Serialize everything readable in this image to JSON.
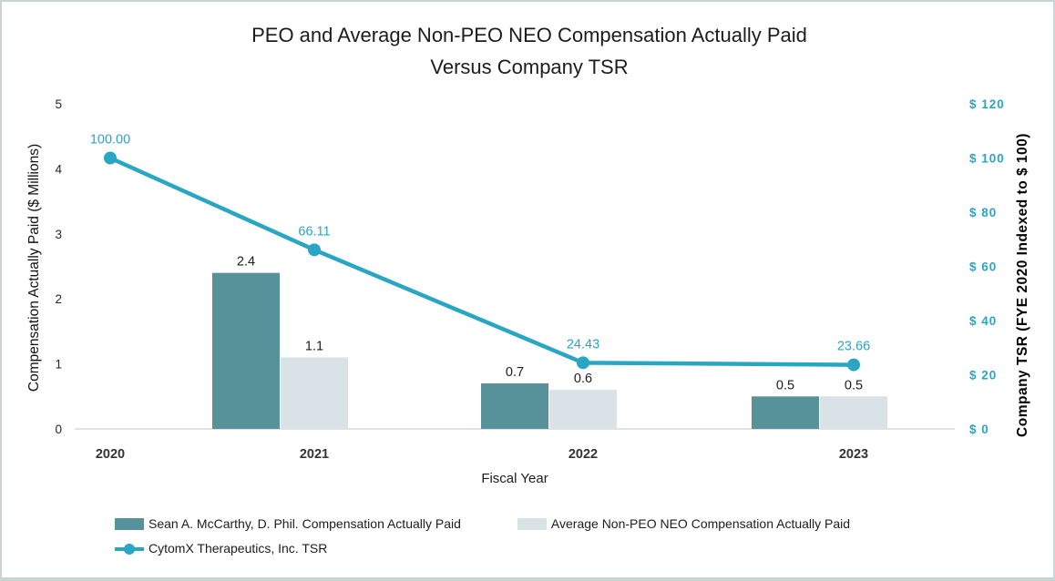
{
  "title": {
    "line1": "PEO and Average Non-PEO NEO Compensation Actually Paid",
    "line2": "Versus Company TSR"
  },
  "chart_data": {
    "type": "combo-bar-line",
    "categories": [
      "2020",
      "2021",
      "2022",
      "2023"
    ],
    "xlabel": "Fiscal Year",
    "left_axis": {
      "label": "Compensation Actually Paid ($ Millions)",
      "range": [
        0,
        5
      ],
      "ticks": [
        "0",
        "1",
        "2",
        "3",
        "4",
        "5"
      ]
    },
    "right_axis": {
      "label": "Company TSR (FYE 2020 Indexed to $ 100)",
      "range": [
        0,
        120
      ],
      "ticks": [
        "$ 0",
        "$ 20",
        "$ 40",
        "$ 60",
        "$ 80",
        "$ 100",
        "$ 120"
      ]
    },
    "series": [
      {
        "name": "Sean A. McCarthy, D. Phil. Compensation Actually Paid",
        "type": "bar",
        "axis": "left",
        "color": "#579199",
        "values": [
          null,
          2.4,
          0.7,
          0.5
        ],
        "labels": [
          "",
          "2.4",
          "0.7",
          "0.5"
        ]
      },
      {
        "name": "Average Non-PEO NEO Compensation Actually Paid",
        "type": "bar",
        "axis": "left",
        "color": "#d9e2e7",
        "values": [
          null,
          1.1,
          0.6,
          0.5
        ],
        "labels": [
          "",
          "1.1",
          "0.6",
          "0.5"
        ]
      },
      {
        "name": "CytomX Therapeutics, Inc. TSR",
        "type": "line",
        "axis": "right",
        "color": "#29a6c3",
        "values": [
          100.0,
          66.11,
          24.43,
          23.66
        ],
        "labels": [
          "100.00",
          "66.11",
          "24.43",
          "23.66"
        ]
      }
    ],
    "legend_position": "bottom-left",
    "grid": "baseline-only"
  },
  "colors": {
    "accent_teal": "#29a6c3",
    "bar_dark_teal": "#579199",
    "bar_light_gray": "#d9e2e7",
    "baseline_gray": "#d9d9d9",
    "text_dark": "#1c1c1c",
    "frame_border": "#c7d6d2"
  }
}
